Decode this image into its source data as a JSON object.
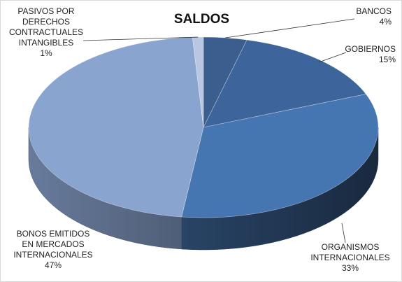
{
  "chart_data": {
    "type": "pie",
    "title": "SALDOS",
    "categories": [
      "BANCOS",
      "GOBIERNOS",
      "ORGANISMOS\nINTERNACIONALES",
      "BONOS EMITIDOS\nEN MERCADOS\nINTERNACIONALES",
      "PASIVOS POR\nDERECHOS\nCONTRACTUALES\nINTANGIBLES"
    ],
    "values": [
      4,
      15,
      33,
      47,
      1
    ],
    "value_labels": [
      "4%",
      "15%",
      "33%",
      "47%",
      "1%"
    ],
    "colors": [
      "#3b5e8f",
      "#3d659c",
      "#4676b2",
      "#8aa4d0",
      "#b9c7e2"
    ]
  }
}
